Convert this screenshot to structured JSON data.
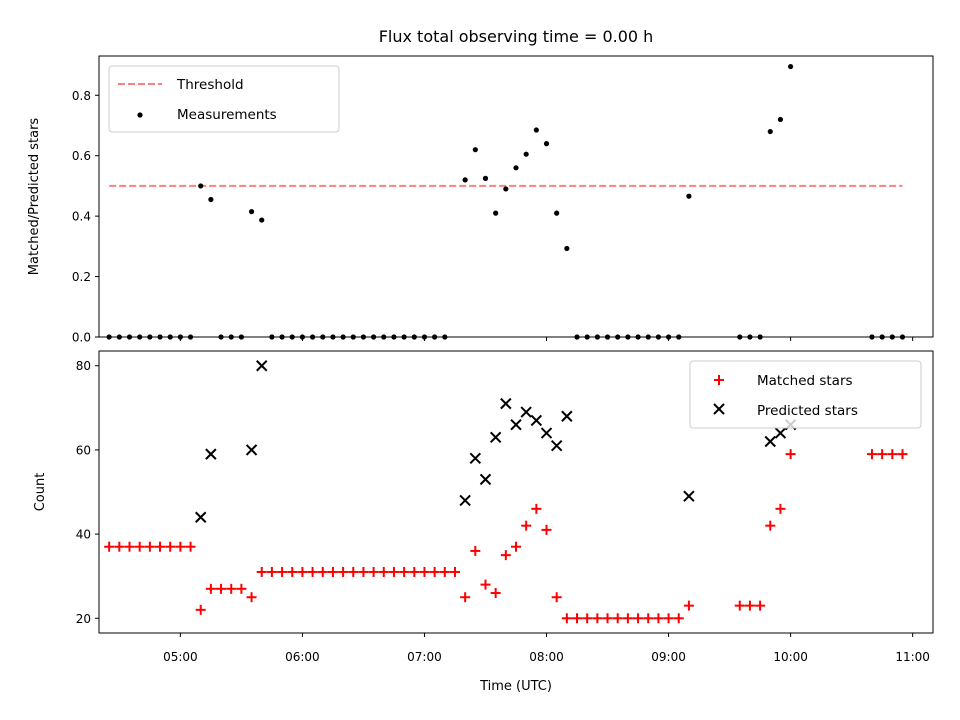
{
  "title": "Flux total observing time = 0.00 h",
  "colors": {
    "threshold": "#ff7f7f",
    "measurement": "#000000",
    "matched": "#ff0000",
    "predicted": "#000000"
  },
  "chart_data": [
    {
      "type": "scatter",
      "ylabel": "Matched/Predicted stars",
      "xlim": [
        "04:20",
        "11:10"
      ],
      "ylim": [
        0,
        0.93
      ],
      "yticks": [
        "0.0",
        "0.2",
        "0.4",
        "0.6",
        "0.8"
      ],
      "legend_placement": "top-left",
      "threshold": {
        "name": "Threshold",
        "y": 0.5,
        "x_range": [
          "04:25",
          "10:55"
        ]
      },
      "measurements": {
        "name": "Measurements",
        "points": [
          [
            "04:25",
            0
          ],
          [
            "04:30",
            0
          ],
          [
            "04:35",
            0
          ],
          [
            "04:40",
            0
          ],
          [
            "04:45",
            0
          ],
          [
            "04:50",
            0
          ],
          [
            "04:55",
            0
          ],
          [
            "05:00",
            0
          ],
          [
            "05:05",
            0
          ],
          [
            "05:10",
            0.5
          ],
          [
            "05:15",
            0.455
          ],
          [
            "05:20",
            0
          ],
          [
            "05:25",
            0
          ],
          [
            "05:30",
            0
          ],
          [
            "05:35",
            0.415
          ],
          [
            "05:40",
            0.387
          ],
          [
            "05:45",
            0
          ],
          [
            "05:50",
            0
          ],
          [
            "05:55",
            0
          ],
          [
            "06:00",
            0
          ],
          [
            "06:05",
            0
          ],
          [
            "06:10",
            0
          ],
          [
            "06:15",
            0
          ],
          [
            "06:20",
            0
          ],
          [
            "06:25",
            0
          ],
          [
            "06:30",
            0
          ],
          [
            "06:35",
            0
          ],
          [
            "06:40",
            0
          ],
          [
            "06:45",
            0
          ],
          [
            "06:50",
            0
          ],
          [
            "06:55",
            0
          ],
          [
            "07:00",
            0
          ],
          [
            "07:05",
            0
          ],
          [
            "07:10",
            0
          ],
          [
            "07:20",
            0.52
          ],
          [
            "07:25",
            0.62
          ],
          [
            "07:30",
            0.525
          ],
          [
            "07:35",
            0.41
          ],
          [
            "07:40",
            0.49
          ],
          [
            "07:45",
            0.56
          ],
          [
            "07:50",
            0.605
          ],
          [
            "07:55",
            0.685
          ],
          [
            "08:00",
            0.64
          ],
          [
            "08:05",
            0.41
          ],
          [
            "08:10",
            0.293
          ],
          [
            "08:15",
            0
          ],
          [
            "08:20",
            0
          ],
          [
            "08:25",
            0
          ],
          [
            "08:30",
            0
          ],
          [
            "08:35",
            0
          ],
          [
            "08:40",
            0
          ],
          [
            "08:45",
            0
          ],
          [
            "08:50",
            0
          ],
          [
            "08:55",
            0
          ],
          [
            "09:00",
            0
          ],
          [
            "09:05",
            0
          ],
          [
            "09:10",
            0.466
          ],
          [
            "09:35",
            0
          ],
          [
            "09:40",
            0
          ],
          [
            "09:45",
            0
          ],
          [
            "09:50",
            0.68
          ],
          [
            "09:55",
            0.72
          ],
          [
            "10:00",
            0.895
          ],
          [
            "10:40",
            0
          ],
          [
            "10:45",
            0
          ],
          [
            "10:50",
            0
          ],
          [
            "10:55",
            0
          ]
        ]
      }
    },
    {
      "type": "scatter",
      "ylabel": "Count",
      "xlabel": "Time (UTC)",
      "xlim": [
        "04:20",
        "11:10"
      ],
      "ylim": [
        16.5,
        83.5
      ],
      "yticks": [
        "20",
        "40",
        "60",
        "80"
      ],
      "xticks": [
        "05:00",
        "06:00",
        "07:00",
        "08:00",
        "09:00",
        "10:00",
        "11:00"
      ],
      "legend_placement": "top-right",
      "series": [
        {
          "name": "Matched stars",
          "points": [
            [
              "04:25",
              37
            ],
            [
              "04:30",
              37
            ],
            [
              "04:35",
              37
            ],
            [
              "04:40",
              37
            ],
            [
              "04:45",
              37
            ],
            [
              "04:50",
              37
            ],
            [
              "04:55",
              37
            ],
            [
              "05:00",
              37
            ],
            [
              "05:05",
              37
            ],
            [
              "05:10",
              22
            ],
            [
              "05:15",
              27
            ],
            [
              "05:20",
              27
            ],
            [
              "05:25",
              27
            ],
            [
              "05:30",
              27
            ],
            [
              "05:35",
              25
            ],
            [
              "05:40",
              31
            ],
            [
              "05:45",
              31
            ],
            [
              "05:50",
              31
            ],
            [
              "05:55",
              31
            ],
            [
              "06:00",
              31
            ],
            [
              "06:05",
              31
            ],
            [
              "06:10",
              31
            ],
            [
              "06:15",
              31
            ],
            [
              "06:20",
              31
            ],
            [
              "06:25",
              31
            ],
            [
              "06:30",
              31
            ],
            [
              "06:35",
              31
            ],
            [
              "06:40",
              31
            ],
            [
              "06:45",
              31
            ],
            [
              "06:50",
              31
            ],
            [
              "06:55",
              31
            ],
            [
              "07:00",
              31
            ],
            [
              "07:05",
              31
            ],
            [
              "07:10",
              31
            ],
            [
              "07:15",
              31
            ],
            [
              "07:20",
              25
            ],
            [
              "07:25",
              36
            ],
            [
              "07:30",
              28
            ],
            [
              "07:35",
              26
            ],
            [
              "07:40",
              35
            ],
            [
              "07:45",
              37
            ],
            [
              "07:50",
              42
            ],
            [
              "07:55",
              46
            ],
            [
              "08:00",
              41
            ],
            [
              "08:05",
              25
            ],
            [
              "08:10",
              20
            ],
            [
              "08:15",
              20
            ],
            [
              "08:20",
              20
            ],
            [
              "08:25",
              20
            ],
            [
              "08:30",
              20
            ],
            [
              "08:35",
              20
            ],
            [
              "08:40",
              20
            ],
            [
              "08:45",
              20
            ],
            [
              "08:50",
              20
            ],
            [
              "08:55",
              20
            ],
            [
              "09:00",
              20
            ],
            [
              "09:05",
              20
            ],
            [
              "09:10",
              23
            ],
            [
              "09:35",
              23
            ],
            [
              "09:40",
              23
            ],
            [
              "09:45",
              23
            ],
            [
              "09:50",
              42
            ],
            [
              "09:55",
              46
            ],
            [
              "10:00",
              59
            ],
            [
              "10:40",
              59
            ],
            [
              "10:45",
              59
            ],
            [
              "10:50",
              59
            ],
            [
              "10:55",
              59
            ]
          ]
        },
        {
          "name": "Predicted stars",
          "points": [
            [
              "05:10",
              44
            ],
            [
              "05:15",
              59
            ],
            [
              "05:35",
              60
            ],
            [
              "05:40",
              80
            ],
            [
              "07:20",
              48
            ],
            [
              "07:25",
              58
            ],
            [
              "07:30",
              53
            ],
            [
              "07:35",
              63
            ],
            [
              "07:40",
              71
            ],
            [
              "07:45",
              66
            ],
            [
              "07:50",
              69
            ],
            [
              "07:55",
              67
            ],
            [
              "08:00",
              64
            ],
            [
              "08:05",
              61
            ],
            [
              "08:10",
              68
            ],
            [
              "09:10",
              49
            ],
            [
              "09:50",
              62
            ],
            [
              "09:55",
              64
            ],
            [
              "10:00",
              66
            ]
          ]
        }
      ]
    }
  ]
}
